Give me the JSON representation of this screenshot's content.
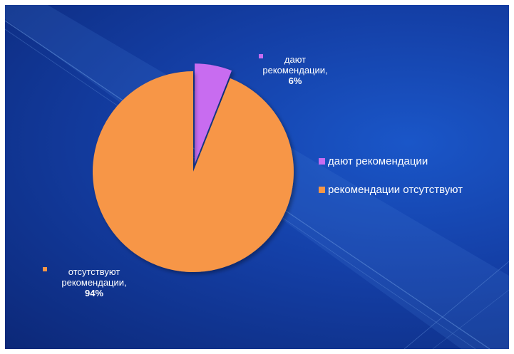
{
  "chart_data": {
    "type": "pie",
    "title": "",
    "slices": [
      {
        "label": "дают рекомендации",
        "value": 6,
        "color": "#c86cf0"
      },
      {
        "label": "рекомендации отсутствуют",
        "value": 94,
        "color": "#f79646"
      }
    ],
    "data_labels": [
      {
        "name": "дают рекомендации,",
        "value": "6%"
      },
      {
        "name": "отсутствуют рекомендации,",
        "value": "94%"
      }
    ],
    "legend": {
      "position": "right",
      "items": [
        "дают рекомендации",
        "рекомендации отсутствуют"
      ]
    }
  }
}
